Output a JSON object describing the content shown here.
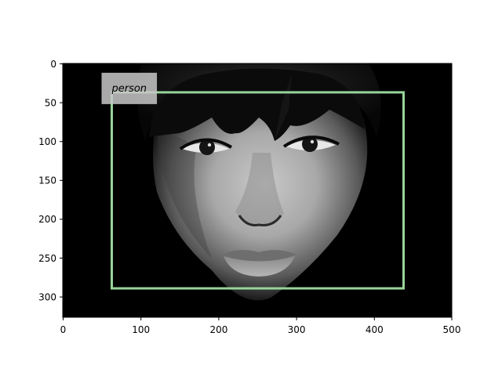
{
  "figure": {
    "image_description_hidden": false,
    "x_axis": {
      "ticks": [
        "0",
        "100",
        "200",
        "300",
        "400",
        "500"
      ],
      "range": [
        0,
        500
      ]
    },
    "y_axis": {
      "ticks": [
        "0",
        "50",
        "100",
        "150",
        "200",
        "250",
        "300"
      ],
      "range": [
        325,
        0
      ]
    }
  },
  "detection": {
    "label": "person",
    "box": {
      "x0": 63,
      "y0": 37,
      "x1": 438,
      "y1": 288
    },
    "box_color": "#98d49a",
    "label_bg_color": "#c8c8c8"
  }
}
